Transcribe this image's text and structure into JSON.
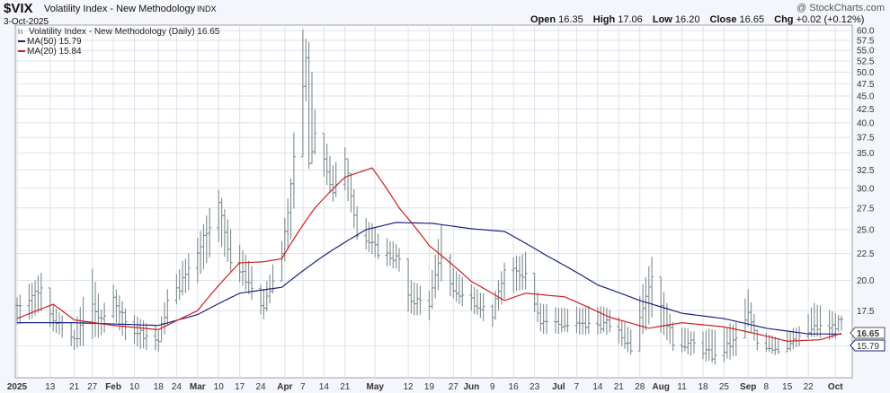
{
  "header": {
    "symbol": "$VIX",
    "name": "Volatility Index - New Methodology",
    "exchange": "INDX",
    "date": "3-Oct-2025",
    "brand": "@ StockCharts.com",
    "quote": [
      {
        "label": "Open",
        "value": "16.35"
      },
      {
        "label": "High",
        "value": "17.06"
      },
      {
        "label": "Low",
        "value": "16.20"
      },
      {
        "label": "Close",
        "value": "16.65"
      },
      {
        "label": "Chg",
        "value": "+0.02 (+0.12%)"
      }
    ]
  },
  "legend": {
    "main": "Volatility Index - New Methodology (Daily) 16.65",
    "ma50": "MA(50) 15.79",
    "ma20": "MA(20) 15.84"
  },
  "badges": {
    "close": "16.65",
    "ma50": "15.79"
  },
  "colors": {
    "bars": "#7f8c8f",
    "ma50": "#1a237e",
    "ma20": "#cc1f1f",
    "grid": "#dde1ea",
    "bg": "#ffffff"
  },
  "chart_data": {
    "type": "ohlc",
    "ylim": [
      13.5,
      61
    ],
    "yscale": "log",
    "yticks": [
      15,
      17.5,
      20,
      22.5,
      25,
      27.5,
      30,
      32.5,
      35,
      37.5,
      40,
      42.5,
      45,
      47.5,
      50,
      52.5,
      55,
      57.5,
      60
    ],
    "ytick_labels": [
      "15.0",
      "17.5",
      "20.0",
      "22.5",
      "25.0",
      "27.5",
      "30.0",
      "32.5",
      "35.0",
      "37.5",
      "40.0",
      "42.5",
      "45.0",
      "47.5",
      "50.0",
      "52.5",
      "55.0",
      "57.5",
      "60.0"
    ],
    "xrange": [
      "2025-01-02",
      "2025-10-06"
    ],
    "xticks": [
      {
        "label": "2025",
        "date": "2025-01-02",
        "major": true
      },
      {
        "label": "13",
        "date": "2025-01-13",
        "major": false
      },
      {
        "label": "21",
        "date": "2025-01-21",
        "major": false
      },
      {
        "label": "27",
        "date": "2025-01-27",
        "major": false
      },
      {
        "label": "Feb",
        "date": "2025-02-03",
        "major": true
      },
      {
        "label": "10",
        "date": "2025-02-10",
        "major": false
      },
      {
        "label": "18",
        "date": "2025-02-18",
        "major": false
      },
      {
        "label": "24",
        "date": "2025-02-24",
        "major": false
      },
      {
        "label": "Mar",
        "date": "2025-03-03",
        "major": true
      },
      {
        "label": "10",
        "date": "2025-03-10",
        "major": false
      },
      {
        "label": "17",
        "date": "2025-03-17",
        "major": false
      },
      {
        "label": "24",
        "date": "2025-03-24",
        "major": false
      },
      {
        "label": "Apr",
        "date": "2025-04-01",
        "major": true
      },
      {
        "label": "7",
        "date": "2025-04-07",
        "major": false
      },
      {
        "label": "14",
        "date": "2025-04-14",
        "major": false
      },
      {
        "label": "21",
        "date": "2025-04-21",
        "major": false
      },
      {
        "label": "May",
        "date": "2025-05-01",
        "major": true
      },
      {
        "label": "12",
        "date": "2025-05-12",
        "major": false
      },
      {
        "label": "19",
        "date": "2025-05-19",
        "major": false
      },
      {
        "label": "27",
        "date": "2025-05-27",
        "major": false
      },
      {
        "label": "Jun",
        "date": "2025-06-02",
        "major": true
      },
      {
        "label": "9",
        "date": "2025-06-09",
        "major": false
      },
      {
        "label": "16",
        "date": "2025-06-16",
        "major": false
      },
      {
        "label": "23",
        "date": "2025-06-23",
        "major": false
      },
      {
        "label": "Jul",
        "date": "2025-07-01",
        "major": true
      },
      {
        "label": "7",
        "date": "2025-07-07",
        "major": false
      },
      {
        "label": "14",
        "date": "2025-07-14",
        "major": false
      },
      {
        "label": "21",
        "date": "2025-07-21",
        "major": false
      },
      {
        "label": "28",
        "date": "2025-07-28",
        "major": false
      },
      {
        "label": "Aug",
        "date": "2025-08-04",
        "major": true
      },
      {
        "label": "11",
        "date": "2025-08-11",
        "major": false
      },
      {
        "label": "18",
        "date": "2025-08-18",
        "major": false
      },
      {
        "label": "25",
        "date": "2025-08-25",
        "major": false
      },
      {
        "label": "Sep",
        "date": "2025-09-02",
        "major": true
      },
      {
        "label": "8",
        "date": "2025-09-08",
        "major": false
      },
      {
        "label": "15",
        "date": "2025-09-15",
        "major": false
      },
      {
        "label": "22",
        "date": "2025-09-22",
        "major": false
      },
      {
        "label": "Oct",
        "date": "2025-10-01",
        "major": true
      }
    ],
    "ohlc_anchors": [
      {
        "x": "2025-01-02",
        "close": 17.9,
        "high": 18.4,
        "low": 16.5
      },
      {
        "x": "2025-01-10",
        "close": 19.3,
        "high": 20.5,
        "low": 17.5
      },
      {
        "x": "2025-01-14",
        "close": 17.0,
        "high": 17.8,
        "low": 16.2
      },
      {
        "x": "2025-01-21",
        "close": 15.3,
        "high": 16.0,
        "low": 14.8
      },
      {
        "x": "2025-01-27",
        "close": 17.9,
        "high": 21.0,
        "low": 15.5
      },
      {
        "x": "2025-01-30",
        "close": 16.6,
        "high": 17.5,
        "low": 15.8
      },
      {
        "x": "2025-02-03",
        "close": 18.6,
        "high": 19.5,
        "low": 17.0
      },
      {
        "x": "2025-02-07",
        "close": 16.5,
        "high": 17.5,
        "low": 15.5
      },
      {
        "x": "2025-02-12",
        "close": 15.9,
        "high": 16.8,
        "low": 15.0
      },
      {
        "x": "2025-02-18",
        "close": 15.3,
        "high": 16.0,
        "low": 14.8
      },
      {
        "x": "2025-02-21",
        "close": 18.2,
        "high": 19.0,
        "low": 16.5
      },
      {
        "x": "2025-02-25",
        "close": 19.4,
        "high": 21.0,
        "low": 18.5
      },
      {
        "x": "2025-03-03",
        "close": 22.8,
        "high": 24.0,
        "low": 20.0
      },
      {
        "x": "2025-03-10",
        "close": 27.9,
        "high": 29.6,
        "low": 24.0
      },
      {
        "x": "2025-03-14",
        "close": 21.8,
        "high": 25.0,
        "low": 21.0
      },
      {
        "x": "2025-03-20",
        "close": 19.8,
        "high": 21.5,
        "low": 19.0
      },
      {
        "x": "2025-03-25",
        "close": 17.5,
        "high": 19.0,
        "low": 17.0
      },
      {
        "x": "2025-03-31",
        "close": 22.3,
        "high": 23.5,
        "low": 21.0
      },
      {
        "x": "2025-04-03",
        "close": 30.0,
        "high": 31.0,
        "low": 24.0
      },
      {
        "x": "2025-04-07",
        "close": 46.9,
        "high": 60.0,
        "low": 38.0
      },
      {
        "x": "2025-04-08",
        "close": 52.3,
        "high": 57.5,
        "low": 44.0
      },
      {
        "x": "2025-04-09",
        "close": 33.6,
        "high": 57.0,
        "low": 33.0
      },
      {
        "x": "2025-04-11",
        "close": 37.6,
        "high": 42.0,
        "low": 35.0
      },
      {
        "x": "2025-04-17",
        "close": 29.7,
        "high": 33.0,
        "low": 28.5
      },
      {
        "x": "2025-04-21",
        "close": 33.8,
        "high": 35.7,
        "low": 30.0
      },
      {
        "x": "2025-04-25",
        "close": 24.8,
        "high": 27.5,
        "low": 24.0
      },
      {
        "x": "2025-05-02",
        "close": 22.7,
        "high": 24.5,
        "low": 22.0
      },
      {
        "x": "2025-05-09",
        "close": 21.9,
        "high": 23.0,
        "low": 21.0
      },
      {
        "x": "2025-05-12",
        "close": 18.4,
        "high": 20.0,
        "low": 17.5
      },
      {
        "x": "2025-05-19",
        "close": 18.1,
        "high": 19.0,
        "low": 17.0
      },
      {
        "x": "2025-05-23",
        "close": 22.3,
        "high": 25.5,
        "low": 20.0
      },
      {
        "x": "2025-05-27",
        "close": 19.0,
        "high": 21.0,
        "low": 18.5
      },
      {
        "x": "2025-06-02",
        "close": 18.4,
        "high": 19.5,
        "low": 17.5
      },
      {
        "x": "2025-06-09",
        "close": 17.2,
        "high": 18.0,
        "low": 16.5
      },
      {
        "x": "2025-06-13",
        "close": 20.8,
        "high": 21.5,
        "low": 18.5
      },
      {
        "x": "2025-06-20",
        "close": 20.6,
        "high": 22.5,
        "low": 19.5
      },
      {
        "x": "2025-06-25",
        "close": 16.8,
        "high": 18.0,
        "low": 16.0
      },
      {
        "x": "2025-07-03",
        "close": 16.4,
        "high": 17.5,
        "low": 16.0
      },
      {
        "x": "2025-07-11",
        "close": 16.4,
        "high": 17.8,
        "low": 15.8
      },
      {
        "x": "2025-07-18",
        "close": 16.5,
        "high": 17.5,
        "low": 16.0
      },
      {
        "x": "2025-07-25",
        "close": 14.9,
        "high": 16.0,
        "low": 14.5
      },
      {
        "x": "2025-08-01",
        "close": 20.4,
        "high": 21.9,
        "low": 17.0
      },
      {
        "x": "2025-08-08",
        "close": 15.2,
        "high": 16.5,
        "low": 14.8
      },
      {
        "x": "2025-08-15",
        "close": 15.1,
        "high": 15.8,
        "low": 14.5
      },
      {
        "x": "2025-08-22",
        "close": 14.2,
        "high": 16.0,
        "low": 13.9
      },
      {
        "x": "2025-08-29",
        "close": 15.4,
        "high": 16.5,
        "low": 14.5
      },
      {
        "x": "2025-09-02",
        "close": 17.2,
        "high": 19.0,
        "low": 16.5
      },
      {
        "x": "2025-09-05",
        "close": 15.2,
        "high": 16.0,
        "low": 14.8
      },
      {
        "x": "2025-09-12",
        "close": 14.8,
        "high": 15.5,
        "low": 14.5
      },
      {
        "x": "2025-09-19",
        "close": 15.4,
        "high": 16.2,
        "low": 15.0
      },
      {
        "x": "2025-09-24",
        "close": 16.2,
        "high": 17.9,
        "low": 15.8
      },
      {
        "x": "2025-09-30",
        "close": 16.3,
        "high": 17.2,
        "low": 15.5
      },
      {
        "x": "2025-10-03",
        "close": 16.65,
        "high": 17.06,
        "low": 16.2
      }
    ],
    "ma50_anchors": [
      {
        "x": "2025-01-02",
        "y": 16.6
      },
      {
        "x": "2025-01-21",
        "y": 16.6
      },
      {
        "x": "2025-02-18",
        "y": 16.4
      },
      {
        "x": "2025-03-03",
        "y": 17.2
      },
      {
        "x": "2025-03-17",
        "y": 18.9
      },
      {
        "x": "2025-03-31",
        "y": 19.4
      },
      {
        "x": "2025-04-14",
        "y": 22.3
      },
      {
        "x": "2025-04-28",
        "y": 25.0
      },
      {
        "x": "2025-05-08",
        "y": 25.8
      },
      {
        "x": "2025-05-20",
        "y": 25.7
      },
      {
        "x": "2025-06-02",
        "y": 25.1
      },
      {
        "x": "2025-06-13",
        "y": 24.8
      },
      {
        "x": "2025-06-27",
        "y": 22.3
      },
      {
        "x": "2025-07-14",
        "y": 19.6
      },
      {
        "x": "2025-07-28",
        "y": 18.3
      },
      {
        "x": "2025-08-11",
        "y": 17.3
      },
      {
        "x": "2025-08-25",
        "y": 16.9
      },
      {
        "x": "2025-09-08",
        "y": 16.2
      },
      {
        "x": "2025-09-22",
        "y": 15.8
      },
      {
        "x": "2025-10-03",
        "y": 15.79
      }
    ],
    "ma20_anchors": [
      {
        "x": "2025-01-02",
        "y": 16.9
      },
      {
        "x": "2025-01-14",
        "y": 18.0
      },
      {
        "x": "2025-01-21",
        "y": 16.8
      },
      {
        "x": "2025-02-03",
        "y": 16.4
      },
      {
        "x": "2025-02-18",
        "y": 16.1
      },
      {
        "x": "2025-03-03",
        "y": 17.5
      },
      {
        "x": "2025-03-17",
        "y": 21.6
      },
      {
        "x": "2025-03-25",
        "y": 21.7
      },
      {
        "x": "2025-03-31",
        "y": 22.0
      },
      {
        "x": "2025-04-11",
        "y": 27.5
      },
      {
        "x": "2025-04-21",
        "y": 31.5
      },
      {
        "x": "2025-04-30",
        "y": 32.8
      },
      {
        "x": "2025-05-09",
        "y": 27.5
      },
      {
        "x": "2025-05-19",
        "y": 23.3
      },
      {
        "x": "2025-06-02",
        "y": 19.9
      },
      {
        "x": "2025-06-13",
        "y": 18.3
      },
      {
        "x": "2025-06-20",
        "y": 18.9
      },
      {
        "x": "2025-07-03",
        "y": 18.6
      },
      {
        "x": "2025-07-18",
        "y": 17.0
      },
      {
        "x": "2025-07-31",
        "y": 16.2
      },
      {
        "x": "2025-08-11",
        "y": 16.6
      },
      {
        "x": "2025-08-25",
        "y": 16.3
      },
      {
        "x": "2025-09-05",
        "y": 15.8
      },
      {
        "x": "2025-09-15",
        "y": 15.3
      },
      {
        "x": "2025-09-26",
        "y": 15.4
      },
      {
        "x": "2025-10-03",
        "y": 15.84
      }
    ]
  }
}
